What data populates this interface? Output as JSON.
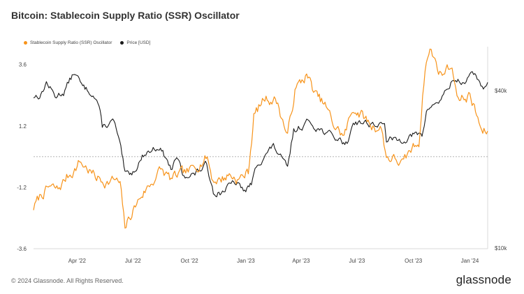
{
  "page": {
    "title": "Bitcoin: Stablecoin Supply Ratio (SSR) Oscillator",
    "footer": "© 2024 Glassnode. All Rights Reserved.",
    "brand": "glassnode"
  },
  "colors": {
    "ssr": "#f7931a",
    "price": "#1a1a1a",
    "zero_line": "#9a9a9a",
    "frame": "#d8d8d8"
  },
  "chart_data": {
    "type": "line",
    "title": "Bitcoin: Stablecoin Supply Ratio (SSR) Oscillator",
    "grid": false,
    "legend_position": "top-left",
    "x_tick_labels": [
      "Apr '22",
      "Jul '22",
      "Oct '22",
      "Jan '23",
      "Apr '23",
      "Jul '23",
      "Oct '23",
      "Jan '24"
    ],
    "left_axis": {
      "tick_labels": [
        "3.6",
        "1.2",
        "-1.2",
        "-3.6"
      ],
      "ylim": [
        -3.6,
        4.3
      ]
    },
    "right_axis": {
      "tick_labels": [
        "$40k",
        "$10k"
      ],
      "scale": "log"
    },
    "series": [
      {
        "name": "Stablecoin Supply Ratio (SSR) Oscillator",
        "axis": "left",
        "points": [
          [
            "2022-01-20",
            -2.0
          ],
          [
            "2022-02-01",
            -1.5
          ],
          [
            "2022-02-15",
            -1.2
          ],
          [
            "2022-03-01",
            -1.3
          ],
          [
            "2022-03-15",
            -0.8
          ],
          [
            "2022-03-28",
            -0.5
          ],
          [
            "2022-04-05",
            -0.2
          ],
          [
            "2022-04-15",
            -0.4
          ],
          [
            "2022-05-01",
            -0.8
          ],
          [
            "2022-05-10",
            -0.9
          ],
          [
            "2022-05-20",
            -1.0
          ],
          [
            "2022-06-01",
            -0.9
          ],
          [
            "2022-06-10",
            -1.1
          ],
          [
            "2022-06-18",
            -2.8
          ],
          [
            "2022-07-01",
            -2.1
          ],
          [
            "2022-07-15",
            -1.5
          ],
          [
            "2022-08-01",
            -1.0
          ],
          [
            "2022-08-15",
            -0.5
          ],
          [
            "2022-09-01",
            -0.9
          ],
          [
            "2022-09-15",
            -0.7
          ],
          [
            "2022-10-01",
            -0.6
          ],
          [
            "2022-10-15",
            -0.3
          ],
          [
            "2022-10-30",
            0.0
          ],
          [
            "2022-11-08",
            -0.9
          ],
          [
            "2022-11-20",
            -0.9
          ],
          [
            "2022-12-05",
            -0.7
          ],
          [
            "2022-12-20",
            -0.9
          ],
          [
            "2023-01-05",
            -0.6
          ],
          [
            "2023-01-14",
            1.6
          ],
          [
            "2023-02-01",
            2.3
          ],
          [
            "2023-02-20",
            2.2
          ],
          [
            "2023-03-10",
            0.8
          ],
          [
            "2023-03-22",
            2.6
          ],
          [
            "2023-04-10",
            3.2
          ],
          [
            "2023-04-25",
            2.4
          ],
          [
            "2023-05-10",
            2.0
          ],
          [
            "2023-05-25",
            1.2
          ],
          [
            "2023-06-10",
            0.8
          ],
          [
            "2023-06-25",
            1.9
          ],
          [
            "2023-07-10",
            1.6
          ],
          [
            "2023-07-25",
            1.2
          ],
          [
            "2023-08-10",
            1.1
          ],
          [
            "2023-08-18",
            0.0
          ],
          [
            "2023-09-01",
            -0.1
          ],
          [
            "2023-09-15",
            -0.3
          ],
          [
            "2023-09-25",
            0.2
          ],
          [
            "2023-10-10",
            0.6
          ],
          [
            "2023-10-20",
            3.5
          ],
          [
            "2023-10-28",
            4.2
          ],
          [
            "2023-11-15",
            3.2
          ],
          [
            "2023-12-01",
            3.6
          ],
          [
            "2023-12-15",
            2.2
          ],
          [
            "2024-01-01",
            2.4
          ],
          [
            "2024-01-12",
            1.6
          ],
          [
            "2024-01-22",
            0.9
          ],
          [
            "2024-01-30",
            1.0
          ]
        ]
      },
      {
        "name": "Price [USD]",
        "axis": "right",
        "points": [
          [
            "2022-01-20",
            38000
          ],
          [
            "2022-02-01",
            38500
          ],
          [
            "2022-02-10",
            43000
          ],
          [
            "2022-02-24",
            38000
          ],
          [
            "2022-03-10",
            39500
          ],
          [
            "2022-03-28",
            47000
          ],
          [
            "2022-04-10",
            41000
          ],
          [
            "2022-04-25",
            39500
          ],
          [
            "2022-05-05",
            36000
          ],
          [
            "2022-05-12",
            29000
          ],
          [
            "2022-05-31",
            30500
          ],
          [
            "2022-06-13",
            22500
          ],
          [
            "2022-06-18",
            19000
          ],
          [
            "2022-07-01",
            19500
          ],
          [
            "2022-07-20",
            23000
          ],
          [
            "2022-08-13",
            24500
          ],
          [
            "2022-09-01",
            20000
          ],
          [
            "2022-09-12",
            22000
          ],
          [
            "2022-09-20",
            19000
          ],
          [
            "2022-10-10",
            19200
          ],
          [
            "2022-10-29",
            20800
          ],
          [
            "2022-11-09",
            16500
          ],
          [
            "2022-11-20",
            16300
          ],
          [
            "2022-12-14",
            17800
          ],
          [
            "2022-12-30",
            16500
          ],
          [
            "2023-01-10",
            17500
          ],
          [
            "2023-01-20",
            21000
          ],
          [
            "2023-02-15",
            24500
          ],
          [
            "2023-03-10",
            20000
          ],
          [
            "2023-03-20",
            28000
          ],
          [
            "2023-04-14",
            30500
          ],
          [
            "2023-05-01",
            28500
          ],
          [
            "2023-05-25",
            26500
          ],
          [
            "2023-06-15",
            25000
          ],
          [
            "2023-06-25",
            30500
          ],
          [
            "2023-07-15",
            30200
          ],
          [
            "2023-08-15",
            29200
          ],
          [
            "2023-08-18",
            26000
          ],
          [
            "2023-09-10",
            25800
          ],
          [
            "2023-09-30",
            27000
          ],
          [
            "2023-10-15",
            27000
          ],
          [
            "2023-10-24",
            34000
          ],
          [
            "2023-11-15",
            37000
          ],
          [
            "2023-12-05",
            44000
          ],
          [
            "2023-12-20",
            43000
          ],
          [
            "2024-01-11",
            46500
          ],
          [
            "2024-01-23",
            39500
          ],
          [
            "2024-01-30",
            43000
          ]
        ]
      }
    ]
  }
}
